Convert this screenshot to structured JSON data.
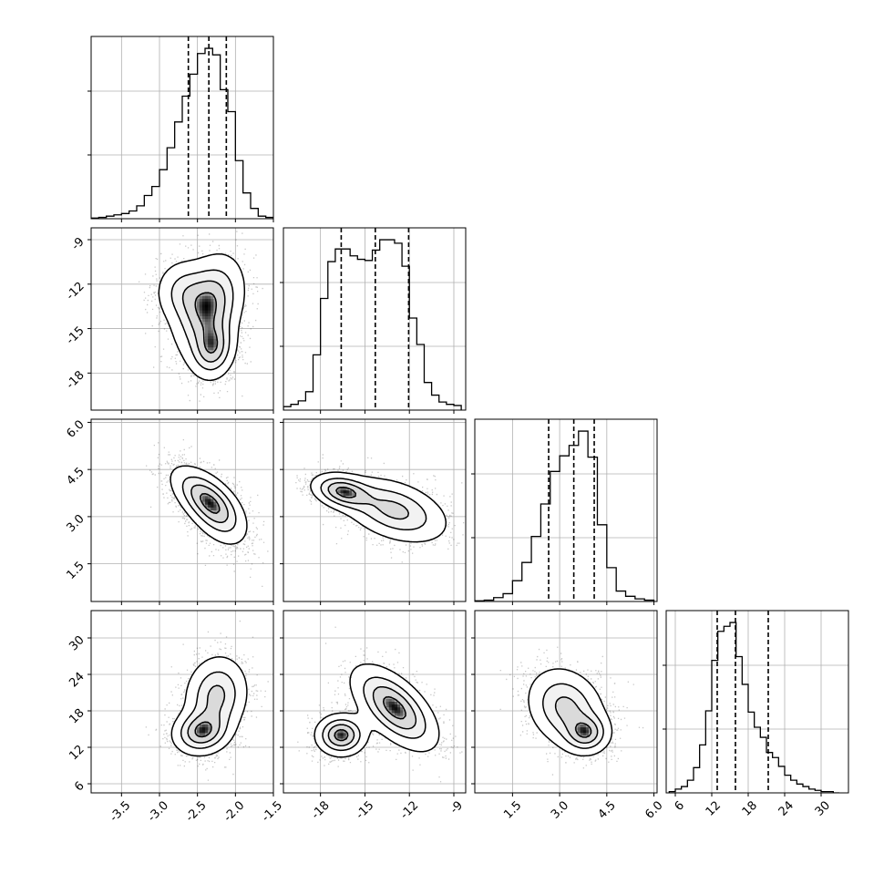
{
  "chart_data": {
    "type": "corner",
    "axis_ranges": [
      [
        -3.9,
        -1.5
      ],
      [
        -20.5,
        -8.2
      ],
      [
        0.3,
        6.1
      ],
      [
        4.5,
        34.5
      ]
    ],
    "x_ticks": [
      [
        "-3.5",
        "-3.0",
        "-2.5",
        "-2.0",
        "-1.5"
      ],
      [
        "-18",
        "-15",
        "-12",
        "-9"
      ],
      [
        "1.5",
        "3.0",
        "4.5",
        "6.0"
      ],
      [
        "6",
        "12",
        "18",
        "24",
        "30"
      ]
    ],
    "y_ticks": [
      [],
      [
        "-9",
        "-12",
        "-15",
        "-18"
      ],
      [
        "6.0",
        "4.5",
        "3.0",
        "1.5"
      ],
      [
        "30",
        "24",
        "18",
        "12",
        "6"
      ]
    ],
    "quantiles": [
      [
        -2.62,
        -2.35,
        -2.12
      ],
      [
        -16.6,
        -14.3,
        -12.05
      ],
      [
        2.65,
        3.45,
        4.1
      ],
      [
        12.9,
        15.9,
        21.3
      ]
    ],
    "histograms": [
      {
        "centers": [
          -3.85,
          -3.75,
          -3.65,
          -3.55,
          -3.45,
          -3.35,
          -3.25,
          -3.15,
          -3.05,
          -2.95,
          -2.85,
          -2.75,
          -2.65,
          -2.55,
          -2.45,
          -2.35,
          -2.25,
          -2.15,
          -2.05,
          -1.95,
          -1.85,
          -1.75,
          -1.65,
          -1.55
        ],
        "counts": [
          0.5,
          1,
          2,
          3,
          4,
          6,
          10,
          18,
          25,
          38,
          55,
          75,
          95,
          112,
          128,
          132,
          127,
          100,
          83,
          45,
          20,
          8,
          2,
          1
        ]
      },
      {
        "centers": [
          -20.25,
          -19.75,
          -19.25,
          -18.75,
          -18.25,
          -17.75,
          -17.25,
          -16.75,
          -16.25,
          -15.75,
          -15.25,
          -14.75,
          -14.25,
          -13.75,
          -13.25,
          -12.75,
          -12.25,
          -11.75,
          -11.25,
          -10.75,
          -10.25,
          -9.75,
          -9.25,
          -8.75
        ],
        "counts": [
          3,
          5,
          8,
          16,
          48,
          97,
          129,
          140,
          140,
          134,
          131,
          130,
          139,
          148,
          148,
          145,
          125,
          80,
          57,
          24,
          13,
          7,
          5,
          4
        ]
      },
      {
        "centers": [
          0.45,
          0.75,
          1.05,
          1.35,
          1.65,
          1.95,
          2.25,
          2.55,
          2.85,
          3.15,
          3.45,
          3.75,
          4.05,
          4.35,
          4.65,
          4.95,
          5.25,
          5.55,
          5.85
        ],
        "counts": [
          0.5,
          1,
          3,
          6,
          16,
          30,
          50,
          75,
          100,
          112,
          120,
          131,
          111,
          59,
          26,
          8,
          4,
          2,
          1
        ]
      },
      {
        "centers": [
          5.5,
          6.5,
          7.5,
          8.5,
          9.5,
          10.5,
          11.5,
          12.5,
          13.5,
          14.5,
          15.5,
          16.5,
          17.5,
          18.5,
          19.5,
          20.5,
          21.5,
          22.5,
          23.5,
          24.5,
          25.5,
          26.5,
          27.5,
          28.5,
          29.5,
          30.5,
          31.5,
          32.5
        ],
        "counts": [
          1,
          3,
          5,
          10,
          20,
          38,
          65,
          105,
          128,
          132,
          135,
          108,
          86,
          64,
          52,
          44,
          32,
          28,
          21,
          14,
          10,
          7,
          5,
          3,
          2,
          1,
          1,
          0
        ]
      }
    ],
    "pairs": [
      {
        "row": 1,
        "col": 0,
        "blobs": [
          {
            "cx": -2.35,
            "cy": -13.5,
            "sx": 0.24,
            "sy": 1.8,
            "rho": 0.3,
            "w": 0.55
          },
          {
            "cx": -2.3,
            "cy": -16.4,
            "sx": 0.16,
            "sy": 1.1,
            "rho": 0.1,
            "w": 0.45
          },
          {
            "cx": -2.7,
            "cy": -12.5,
            "sx": 0.2,
            "sy": 1.2,
            "rho": 0.0,
            "w": 0.25
          }
        ]
      },
      {
        "row": 2,
        "col": 0,
        "blobs": [
          {
            "cx": -2.4,
            "cy": 3.6,
            "sx": 0.25,
            "sy": 0.55,
            "rho": -0.6,
            "w": 0.6
          },
          {
            "cx": -2.25,
            "cy": 3.1,
            "sx": 0.22,
            "sy": 0.6,
            "rho": -0.5,
            "w": 0.4
          }
        ]
      },
      {
        "row": 2,
        "col": 1,
        "blobs": [
          {
            "cx": -16.5,
            "cy": 3.8,
            "sx": 1.1,
            "sy": 0.3,
            "rho": -0.3,
            "w": 0.55
          },
          {
            "cx": -13.0,
            "cy": 3.2,
            "sx": 1.9,
            "sy": 0.55,
            "rho": -0.4,
            "w": 0.45
          }
        ]
      },
      {
        "row": 3,
        "col": 0,
        "blobs": [
          {
            "cx": -2.45,
            "cy": 14.5,
            "sx": 0.2,
            "sy": 2.0,
            "rho": 0.1,
            "w": 0.55
          },
          {
            "cx": -2.25,
            "cy": 20.5,
            "sx": 0.22,
            "sy": 3.5,
            "rho": 0.1,
            "w": 0.45
          }
        ]
      },
      {
        "row": 3,
        "col": 1,
        "blobs": [
          {
            "cx": -16.6,
            "cy": 14.0,
            "sx": 0.9,
            "sy": 1.8,
            "rho": 0.0,
            "w": 0.5
          },
          {
            "cx": -13.0,
            "cy": 18.5,
            "sx": 1.5,
            "sy": 3.6,
            "rho": -0.6,
            "w": 0.5
          }
        ]
      },
      {
        "row": 3,
        "col": 2,
        "blobs": [
          {
            "cx": 3.85,
            "cy": 14.3,
            "sx": 0.4,
            "sy": 1.8,
            "rho": 0.0,
            "w": 0.5
          },
          {
            "cx": 3.2,
            "cy": 18.5,
            "sx": 0.65,
            "sy": 3.5,
            "rho": -0.2,
            "w": 0.5
          }
        ]
      }
    ],
    "grid": true,
    "style": {
      "line_color": "#000000",
      "grid_color": "#b0b0b0",
      "scatter_color": "#000000"
    }
  }
}
